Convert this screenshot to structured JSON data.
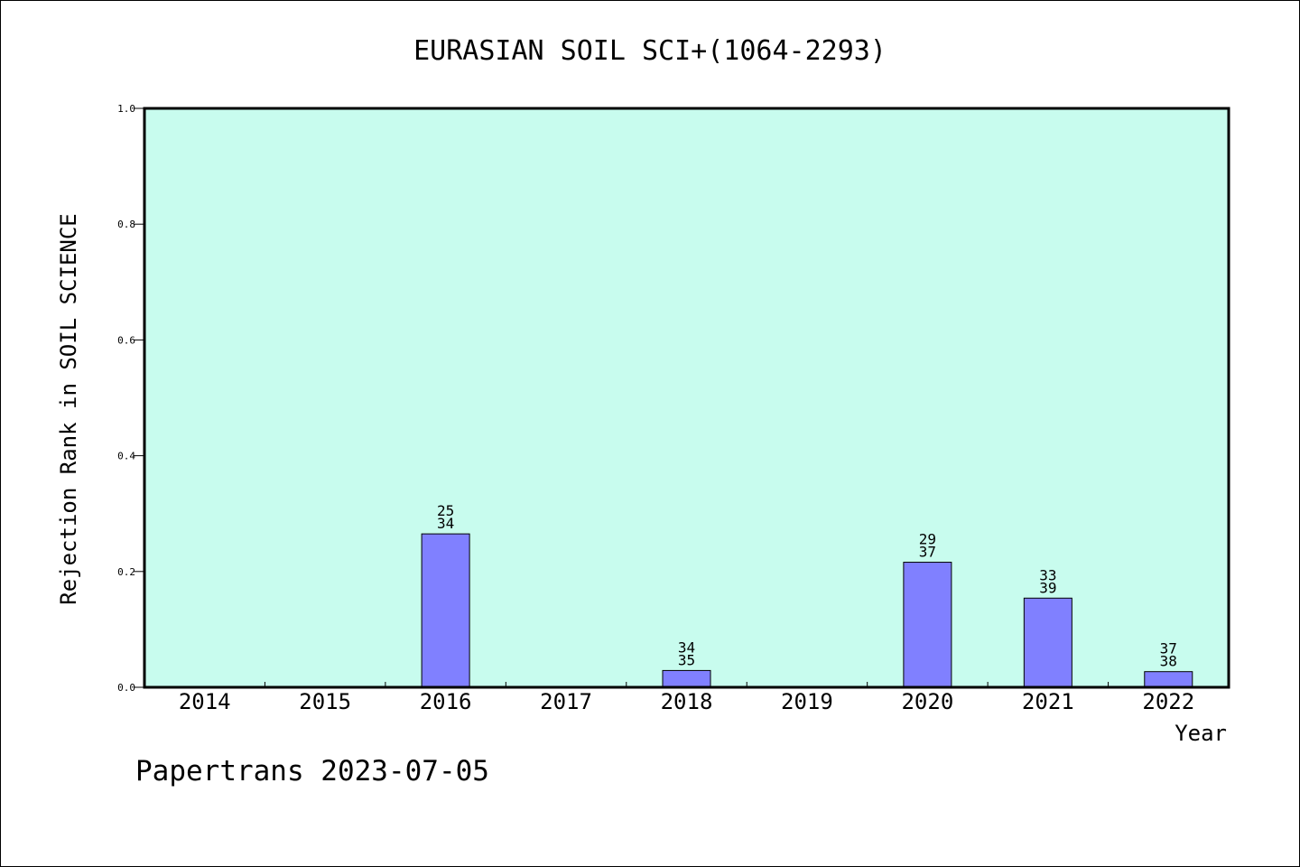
{
  "chart_data": {
    "type": "bar",
    "title": "EURASIAN SOIL SCI+(1064-2293)",
    "xlabel": "Year",
    "ylabel": "Rejection Rank in SOIL SCIENCE",
    "ylim": [
      0.0,
      1.0
    ],
    "yticks": [
      "0.0",
      "0.2",
      "0.4",
      "0.6",
      "0.8",
      "1.0"
    ],
    "categories": [
      "2014",
      "2015",
      "2016",
      "2017",
      "2018",
      "2019",
      "2020",
      "2021",
      "2022"
    ],
    "values": [
      0,
      0,
      0.265,
      0,
      0.029,
      0,
      0.216,
      0.154,
      0.027
    ],
    "labels": [
      null,
      null,
      [
        "25",
        "34"
      ],
      null,
      [
        "34",
        "35"
      ],
      null,
      [
        "29",
        "37"
      ],
      [
        "33",
        "39"
      ],
      [
        "37",
        "38"
      ]
    ],
    "grid": false,
    "colors": {
      "plot_background": "#c8fcee",
      "bar_fill": "#8080ff",
      "bar_stroke": "#000000"
    }
  },
  "footer": "Papertrans 2023-07-05"
}
